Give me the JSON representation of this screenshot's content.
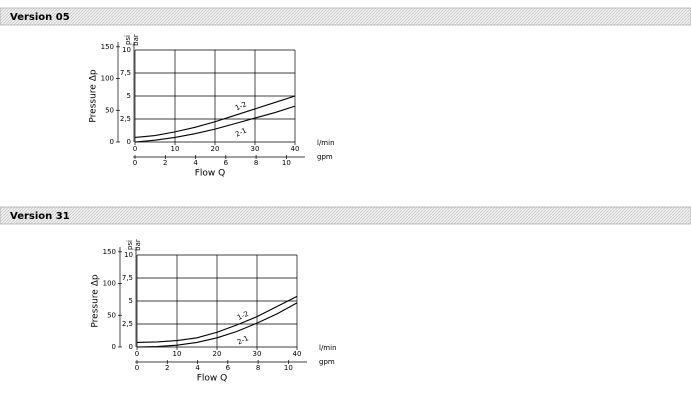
{
  "chart_data": [
    {
      "type": "line",
      "title": "Version 05",
      "y_label": "Pressure Δp",
      "x_label": "Flow Q",
      "y_unit": "bar",
      "y2_unit": "psi",
      "x_unit": "l/min",
      "x2_unit": "gpm",
      "x": [
        0,
        5,
        10,
        15,
        20,
        25,
        30,
        35,
        40
      ],
      "series": [
        {
          "name": "1-2",
          "color": "#000000",
          "values": [
            0.5,
            0.7,
            1.1,
            1.6,
            2.2,
            2.9,
            3.6,
            4.3,
            5.0
          ]
        },
        {
          "name": "2-1",
          "color": "#000000",
          "values": [
            0,
            0.2,
            0.5,
            0.9,
            1.4,
            2.0,
            2.6,
            3.2,
            3.9
          ]
        }
      ],
      "xlim": [
        0,
        40
      ],
      "xticks": [
        0,
        10,
        20,
        30,
        40
      ],
      "x2lim": [
        0,
        10.57
      ],
      "x2ticks": [
        0,
        2,
        4,
        6,
        8,
        10
      ],
      "ylim": [
        0,
        10
      ],
      "yticks": [
        0,
        {
          "value": 2.5,
          "label": "2,5"
        },
        5,
        {
          "value": 7.5,
          "label": "7,5"
        },
        10
      ],
      "y2lim": [
        0,
        145
      ],
      "y2ticks": [
        0,
        50,
        100,
        150
      ],
      "grid": true
    },
    {
      "type": "line",
      "title": "Version 31",
      "y_label": "Pressure Δp",
      "x_label": "Flow Q",
      "y_unit": "bar",
      "y2_unit": "psi",
      "x_unit": "l/min",
      "x2_unit": "gpm",
      "x": [
        0,
        5,
        10,
        15,
        20,
        25,
        30,
        35,
        40
      ],
      "series": [
        {
          "name": "1-2",
          "color": "#000000",
          "values": [
            0.5,
            0.55,
            0.7,
            1.0,
            1.6,
            2.4,
            3.3,
            4.4,
            5.5
          ]
        },
        {
          "name": "2-1",
          "color": "#000000",
          "values": [
            0,
            0.05,
            0.2,
            0.5,
            1.0,
            1.7,
            2.6,
            3.6,
            4.8
          ]
        }
      ],
      "xlim": [
        0,
        40
      ],
      "xticks": [
        0,
        10,
        20,
        30,
        40
      ],
      "x2lim": [
        0,
        10.57
      ],
      "x2ticks": [
        0,
        2,
        4,
        6,
        8,
        10
      ],
      "ylim": [
        0,
        10
      ],
      "yticks": [
        0,
        {
          "value": 2.5,
          "label": "2,5"
        },
        5,
        {
          "value": 7.5,
          "label": "7,5"
        },
        10
      ],
      "y2lim": [
        0,
        145
      ],
      "y2ticks": [
        0,
        50,
        100,
        150
      ],
      "grid": true
    }
  ]
}
